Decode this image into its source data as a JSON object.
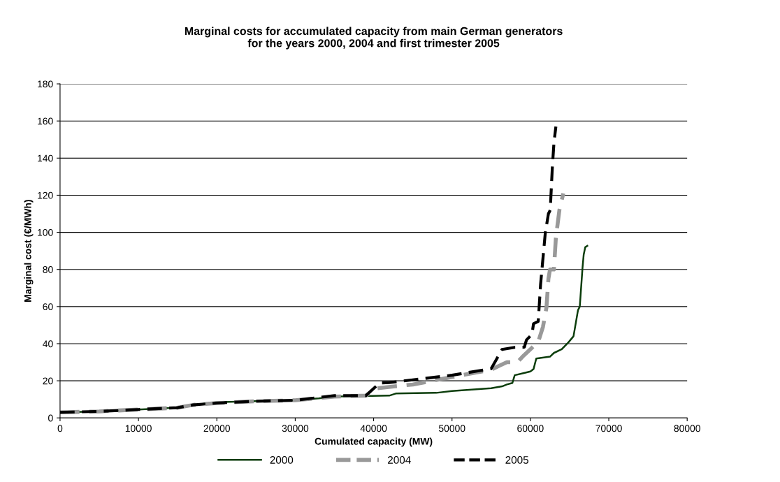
{
  "chart_data": {
    "type": "line",
    "title": "Marginal costs for accumulated capacity from main German generators\nfor the years 2000, 2004 and first trimester 2005",
    "xlabel": "Cumulated capacity (MW)",
    "ylabel": "Marginal cost (€/MWh)",
    "xlim": [
      0,
      80000
    ],
    "xticks": [
      0,
      10000,
      20000,
      30000,
      40000,
      50000,
      60000,
      70000,
      80000
    ],
    "ylim": [
      0,
      180
    ],
    "yticks": [
      0,
      20,
      40,
      60,
      80,
      100,
      120,
      140,
      160,
      180
    ],
    "grid": "y",
    "legend": "bottom",
    "series": [
      {
        "name": "2000",
        "color": "#0b3d0b",
        "line_style": "solid",
        "x": [
          0,
          5000,
          10000,
          15000,
          17000,
          20000,
          25000,
          30000,
          33000,
          35000,
          38700,
          42000,
          42900,
          48000,
          50000,
          55000,
          56400,
          57000,
          57700,
          58000,
          59000,
          60000,
          60400,
          60750,
          62500,
          63000,
          64000,
          64850,
          65500,
          66070,
          66300,
          66650,
          66800,
          67000,
          67260
        ],
        "values": [
          3,
          3.5,
          4.5,
          5.5,
          7,
          8.5,
          9,
          9.5,
          10.5,
          11.5,
          11.8,
          12,
          13.2,
          13.5,
          14.5,
          16,
          17,
          18,
          18.8,
          23,
          24,
          25,
          26.3,
          32,
          33,
          35,
          37,
          40.7,
          44,
          58,
          60,
          81,
          88,
          92,
          92.7
        ]
      },
      {
        "name": "2004",
        "color": "#999999",
        "line_style": "dashed",
        "x": [
          0,
          5000,
          10000,
          15000,
          17000,
          20000,
          25000,
          30000,
          35000,
          39000,
          40500,
          45000,
          50000,
          55000,
          56000,
          57000,
          58340,
          59000,
          60000,
          61000,
          61600,
          62050,
          62300,
          62500,
          63000,
          63250,
          63700,
          64200
        ],
        "values": [
          3,
          3.5,
          4.5,
          5.5,
          7,
          8,
          9,
          9.5,
          11.5,
          12,
          16,
          18,
          22,
          26,
          28,
          30,
          30,
          33,
          37,
          41,
          49,
          59.5,
          75,
          80,
          80,
          97,
          112,
          121
        ]
      },
      {
        "name": "2005",
        "color": "#000000",
        "line_style": "dashed",
        "x": [
          0,
          5000,
          10000,
          15000,
          17000,
          20000,
          25000,
          30000,
          35000,
          39000,
          40780,
          42000,
          45000,
          50000,
          55000,
          56000,
          56380,
          58000,
          59230,
          59500,
          60200,
          60400,
          61000,
          61300,
          61900,
          62300,
          62530,
          62800,
          63000,
          63250
        ],
        "values": [
          3,
          3.5,
          4.5,
          5.5,
          7,
          8,
          9,
          9.5,
          12,
          12,
          18.8,
          19,
          20.5,
          23,
          26.5,
          34,
          36.9,
          38,
          38.1,
          42,
          45,
          50.8,
          52,
          72,
          99.7,
          110,
          112,
          135,
          148,
          157
        ]
      }
    ]
  }
}
